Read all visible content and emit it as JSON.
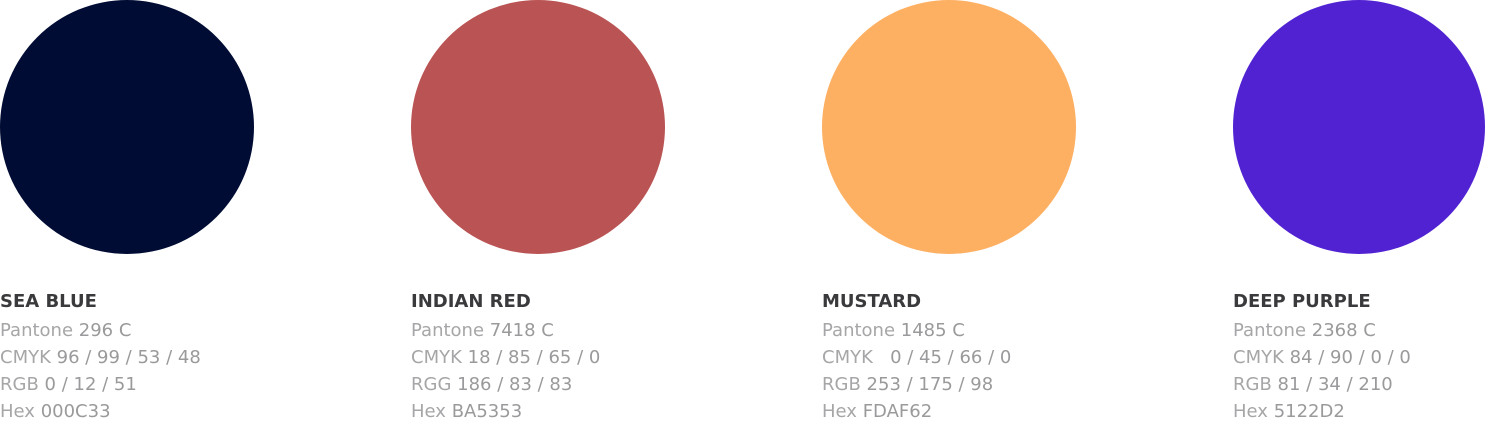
{
  "swatches": [
    {
      "name": "SEA BLUE",
      "color": "#000C33",
      "rows": [
        {
          "label": "Pantone",
          "value": "296 C"
        },
        {
          "label": "CMYK",
          "value": "96 / 99 / 53 / 48"
        },
        {
          "label": "RGB",
          "value": "0 / 12 / 51"
        },
        {
          "label": "Hex",
          "value": "000C33"
        }
      ]
    },
    {
      "name": "INDIAN RED",
      "color": "#BA5353",
      "rows": [
        {
          "label": "Pantone",
          "value": "7418 C"
        },
        {
          "label": "CMYK",
          "value": "18 / 85 / 65 / 0"
        },
        {
          "label": "RGG",
          "value": "186 / 83 / 83"
        },
        {
          "label": "Hex",
          "value": "BA5353"
        }
      ]
    },
    {
      "name": "MUSTARD",
      "color": "#FDAF62",
      "rows": [
        {
          "label": "Pantone",
          "value": "1485 C"
        },
        {
          "label": "CMYK",
          "value": "  0 / 45 / 66 / 0"
        },
        {
          "label": "RGB",
          "value": "253 / 175 / 98"
        },
        {
          "label": "Hex",
          "value": "FDAF62"
        }
      ]
    },
    {
      "name": "DEEP PURPLE",
      "color": "#5122D2",
      "rows": [
        {
          "label": "Pantone",
          "value": "2368 C"
        },
        {
          "label": "CMYK",
          "value": "84 / 90 / 0 / 0"
        },
        {
          "label": "RGB",
          "value": "81 / 34 / 210"
        },
        {
          "label": "Hex",
          "value": "5122D2"
        }
      ]
    }
  ]
}
